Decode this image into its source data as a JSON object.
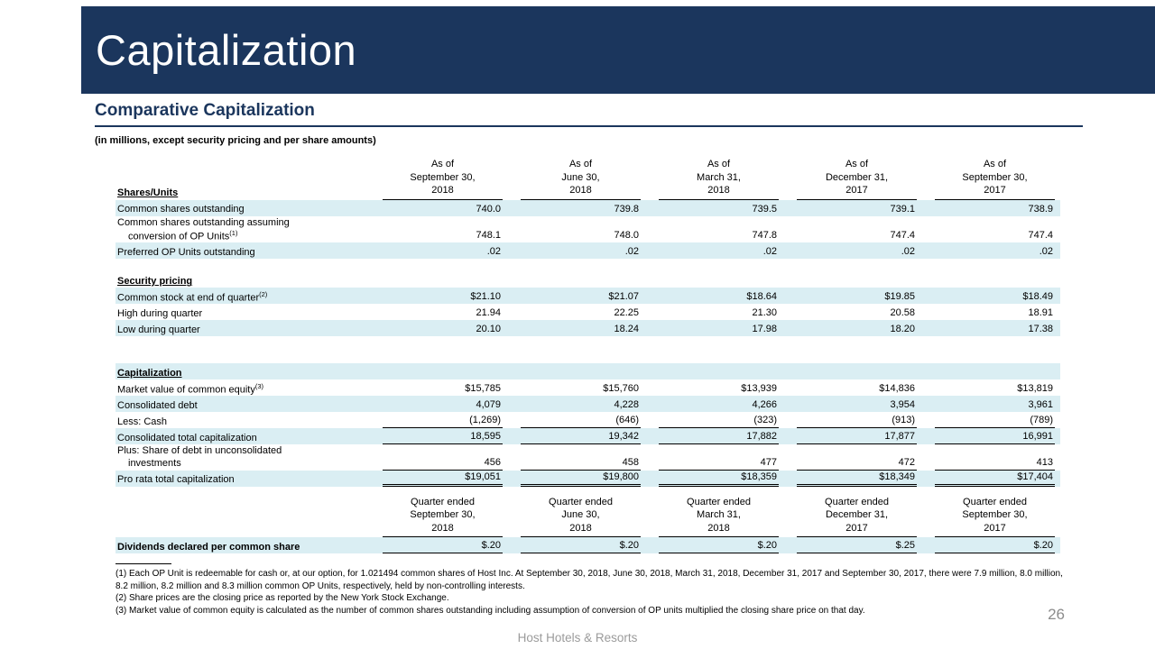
{
  "slide": {
    "title": "Capitalization",
    "section_title": "Comparative Capitalization",
    "units_note": "(in millions, except security pricing and per share amounts)",
    "page_number": "26",
    "footer_brand": "Host Hotels & Resorts",
    "colors": {
      "navy": "#1B365D",
      "row_shade": "#DAEEF3",
      "footer_gray": "#9B9B9B"
    }
  },
  "table": {
    "column_sets": {
      "as_of": [
        [
          "As of",
          "September 30,",
          "2018"
        ],
        [
          "As of",
          "June 30,",
          "2018"
        ],
        [
          "As of",
          "March 31,",
          "2018"
        ],
        [
          "As of",
          "December 31,",
          "2017"
        ],
        [
          "As of",
          "September 30,",
          "2017"
        ]
      ],
      "quarter": [
        [
          "Quarter ended",
          "September 30,",
          "2018"
        ],
        [
          "Quarter ended",
          "June 30,",
          "2018"
        ],
        [
          "Quarter ended",
          "March 31,",
          "2018"
        ],
        [
          "Quarter ended",
          "December 31,",
          "2017"
        ],
        [
          "Quarter ended",
          "September 30,",
          "2017"
        ]
      ]
    },
    "rows": [
      {
        "type": "header",
        "label": "Shares/Units",
        "cols": "as_of"
      },
      {
        "type": "data",
        "label": "Common shares outstanding",
        "values": [
          "740.0",
          "739.8",
          "739.5",
          "739.1",
          "738.9"
        ],
        "shade": true
      },
      {
        "type": "data",
        "label": "Common shares outstanding assuming",
        "label2": "conversion of OP Units",
        "sup": "(1)",
        "values": [
          "748.1",
          "748.0",
          "747.8",
          "747.4",
          "747.4"
        ],
        "shade": false
      },
      {
        "type": "data",
        "label": "Preferred OP Units outstanding",
        "values": [
          ".02",
          ".02",
          ".02",
          ".02",
          ".02"
        ],
        "shade": true
      },
      {
        "type": "spacer",
        "h": 14
      },
      {
        "type": "section",
        "label": "Security pricing",
        "shade": false
      },
      {
        "type": "data",
        "label": "Common stock at end of quarter",
        "sup": "(2)",
        "values": [
          "$21.10",
          "$21.07",
          "$18.64",
          "$19.85",
          "$18.49"
        ],
        "shade": true
      },
      {
        "type": "data",
        "label": "High during quarter",
        "values": [
          "21.94",
          "22.25",
          "21.30",
          "20.58",
          "18.91"
        ],
        "shade": false
      },
      {
        "type": "data",
        "label": "Low during quarter",
        "values": [
          "20.10",
          "18.24",
          "17.98",
          "18.20",
          "17.38"
        ],
        "shade": true
      },
      {
        "type": "spacer",
        "h": 30
      },
      {
        "type": "section",
        "label": "Capitalization",
        "shade": true
      },
      {
        "type": "data",
        "label": "Market value of common equity",
        "sup": "(3)",
        "values": [
          "$15,785",
          "$15,760",
          "$13,939",
          "$14,836",
          "$13,819"
        ],
        "shade": false
      },
      {
        "type": "data",
        "label": "Consolidated debt",
        "values": [
          "4,079",
          "4,228",
          "4,266",
          "3,954",
          "3,961"
        ],
        "shade": true
      },
      {
        "type": "data",
        "label": "Less: Cash",
        "values": [
          "(1,269)",
          "(646)",
          "(323)",
          "(913)",
          "(789)"
        ],
        "shade": false,
        "underline": "single"
      },
      {
        "type": "data",
        "label": "Consolidated total capitalization",
        "values": [
          "18,595",
          "19,342",
          "17,882",
          "17,877",
          "16,991"
        ],
        "shade": true,
        "underline": "single"
      },
      {
        "type": "data",
        "label": "Plus: Share of debt in unconsolidated",
        "label2": "investments",
        "values": [
          "456",
          "458",
          "477",
          "472",
          "413"
        ],
        "shade": false,
        "underline": "single"
      },
      {
        "type": "data",
        "label": "Pro rata total capitalization",
        "values": [
          "$19,051",
          "$19,800",
          "$18,359",
          "$18,349",
          "$17,404"
        ],
        "shade": true,
        "underline": "double"
      },
      {
        "type": "spacer",
        "h": 10
      },
      {
        "type": "header",
        "label": "",
        "cols": "quarter"
      },
      {
        "type": "data",
        "label": "Dividends declared per common share",
        "bold": true,
        "values": [
          "$.20",
          "$.20",
          "$.20",
          "$.25",
          "$.20"
        ],
        "shade": true,
        "underline": "single"
      }
    ]
  },
  "footnotes": [
    "(1) Each OP Unit is redeemable for cash or, at our option, for 1.021494 common shares of Host Inc. At September 30, 2018, June 30, 2018, March 31, 2018, December 31, 2017 and September 30, 2017, there were 7.9 million, 8.0 million, 8.2 million, 8.2 million and 8.3 million common OP Units, respectively, held by non-controlling interests.",
    "(2) Share prices are the closing price as reported by the New York Stock Exchange.",
    "(3) Market value of common equity is calculated as the number of common shares outstanding including assumption of conversion of OP units multiplied the closing share price on that day."
  ]
}
